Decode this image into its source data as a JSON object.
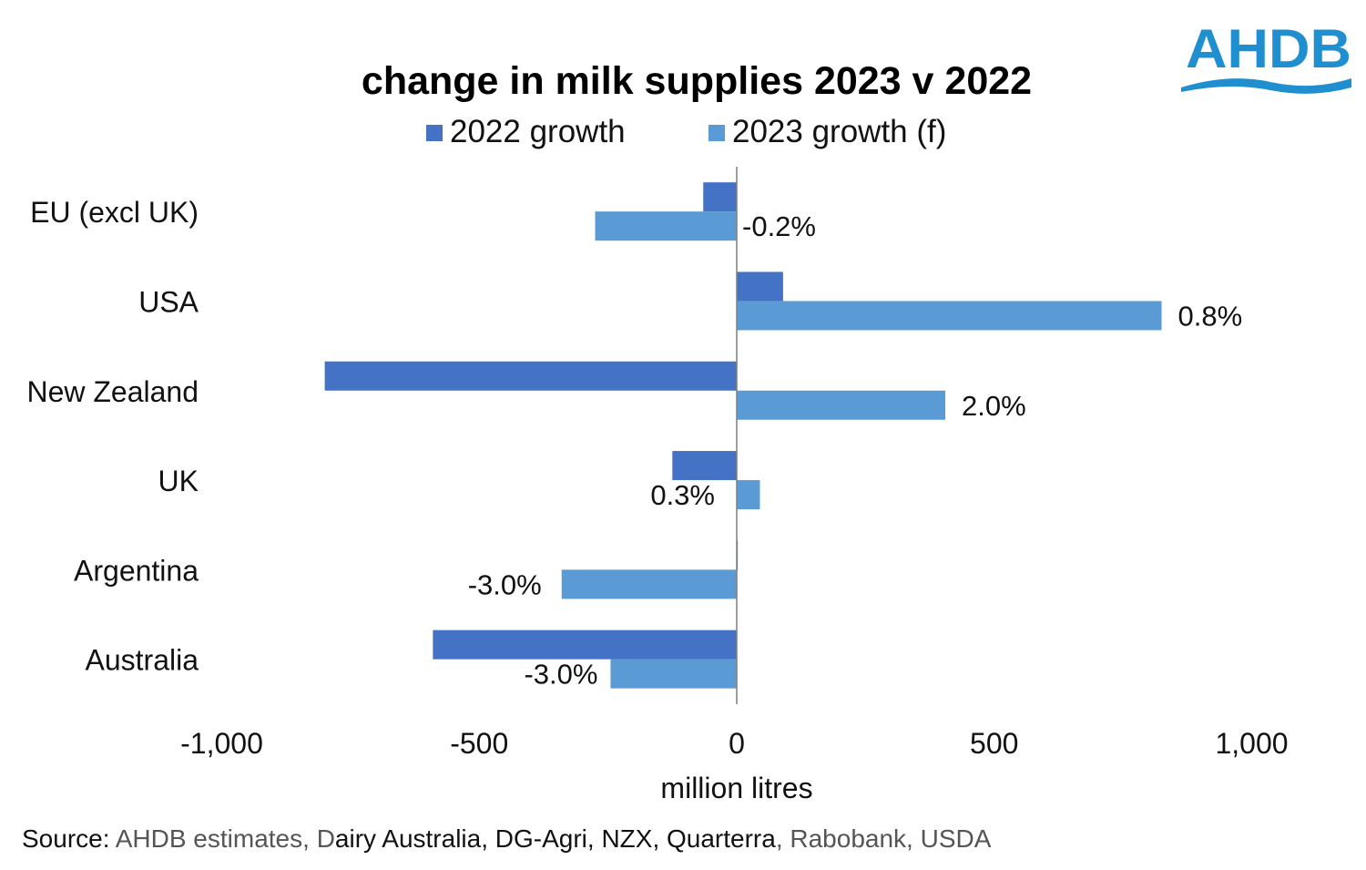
{
  "logo": {
    "text": "AHDB",
    "color": "#1f8fd0"
  },
  "chart_data": {
    "type": "bar",
    "orientation": "horizontal",
    "title": "change in milk supplies 2023 v 2022",
    "xlabel": "million litres",
    "ylabel": "",
    "xlim": [
      -1000,
      1000
    ],
    "x_ticks": [
      -1000,
      -500,
      0,
      500,
      1000
    ],
    "x_tick_labels": [
      "-1,000",
      "-500",
      "0",
      "500",
      "1,000"
    ],
    "categories": [
      "EU (excl UK)",
      "USA",
      "New Zealand",
      "UK",
      "Argentina",
      "Australia"
    ],
    "series": [
      {
        "name": "2022 growth",
        "color": "#4472c4",
        "values": [
          -65,
          90,
          -800,
          -125,
          2,
          -590
        ]
      },
      {
        "name": "2023 growth (f)",
        "color": "#5b9bd5",
        "values": [
          -275,
          825,
          405,
          45,
          -340,
          -245
        ]
      }
    ],
    "data_labels_2023": [
      "-0.2%",
      "0.8%",
      "2.0%",
      "0.3%",
      "-3.0%",
      "-3.0%"
    ],
    "legend_position": "top",
    "grid": false
  },
  "source": {
    "parts": [
      {
        "text": "Source: ",
        "tone": "dark"
      },
      {
        "text": "AHDB estimates, ",
        "tone": "grey"
      },
      {
        "text": "D",
        "tone": "grey"
      },
      {
        "text": "airy Australia, DG-Agri, NZX, Quarterra",
        "tone": "dark"
      },
      {
        "text": ", Rabobank, USDA",
        "tone": "grey"
      }
    ]
  }
}
